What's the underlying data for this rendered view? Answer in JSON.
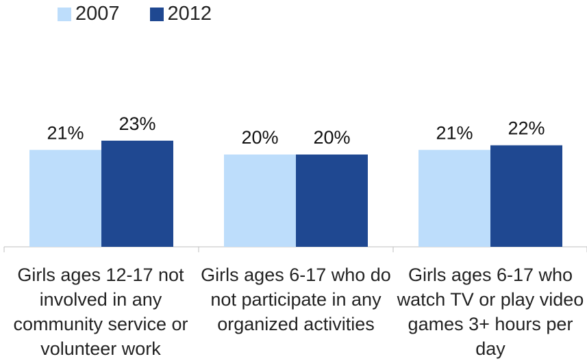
{
  "chart_data": {
    "type": "bar",
    "categories": [
      "Girls ages 12-17 not involved in any community service or volunteer work",
      "Girls ages 6-17 who do not participate in any organized activities",
      "Girls ages 6-17 who watch TV or play video games 3+ hours per day"
    ],
    "series": [
      {
        "name": "2007",
        "values": [
          21,
          20,
          21
        ],
        "labels": [
          "21%",
          "20%",
          "21%"
        ],
        "color": "#BDDDFB"
      },
      {
        "name": "2012",
        "values": [
          23,
          20,
          22
        ],
        "labels": [
          "23%",
          "20%",
          "22%"
        ],
        "color": "#1F4891"
      }
    ],
    "ylim": [
      0,
      30
    ],
    "grid": false,
    "legend_position": "top-left",
    "xlabel": "",
    "ylabel": ""
  }
}
